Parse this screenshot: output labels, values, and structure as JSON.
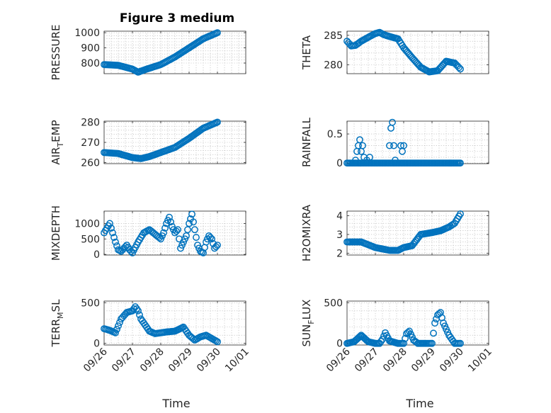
{
  "chart_data": {
    "type": "scatter",
    "title": "Figure 3 medium",
    "marker_color": "#0072BD",
    "x_axis": {
      "xlabel": "Time",
      "tick_labels": [
        "09/26",
        "09/27",
        "09/28",
        "09/29",
        "09/30",
        "10/01"
      ],
      "xlim": [
        0,
        5
      ]
    },
    "panels": [
      {
        "name": "pressure",
        "ylabel": "PRESSURE",
        "ylabel_sub": "",
        "ylabel_post": "",
        "ylim": [
          730,
          1010
        ],
        "yticks": [
          800,
          900,
          1000
        ],
        "ytick_labels": [
          "800",
          "900",
          "1000"
        ],
        "series": [
          {
            "x": [
              0,
              0.5,
              1,
              1.2,
              1.5,
              2,
              2.5,
              3,
              3.5,
              4
            ],
            "y": [
              790,
              785,
              760,
              740,
              760,
              790,
              840,
              900,
              960,
              1000
            ]
          }
        ]
      },
      {
        "name": "theta",
        "ylabel": "THETA",
        "ylabel_sub": "",
        "ylabel_post": "",
        "ylim": [
          278.5,
          285.7
        ],
        "yticks": [
          280,
          285
        ],
        "ytick_labels": [
          "280",
          "285"
        ],
        "series": [
          {
            "x": [
              0,
              0.15,
              0.3,
              0.5,
              0.8,
              1.0,
              1.15,
              1.3,
              1.5,
              1.8,
              2.0,
              2.3,
              2.6,
              2.9,
              3.2,
              3.5,
              3.8,
              4.0
            ],
            "y": [
              284.0,
              283.2,
              283.3,
              284.0,
              284.8,
              285.3,
              285.5,
              285.1,
              284.8,
              284.4,
              282.9,
              281.2,
              279.6,
              278.8,
              279.0,
              280.6,
              280.3,
              279.3
            ]
          }
        ]
      },
      {
        "name": "air-temp",
        "ylabel": "AIR",
        "ylabel_sub": "T",
        "ylabel_post": "EMP",
        "ylim": [
          259.5,
          280.5
        ],
        "yticks": [
          260,
          270,
          280
        ],
        "ytick_labels": [
          "260",
          "270",
          "280"
        ],
        "series": [
          {
            "x": [
              0,
              0.5,
              1,
              1.3,
              1.6,
              2,
              2.5,
              3,
              3.5,
              4
            ],
            "y": [
              265,
              264.5,
              262.5,
              262,
              263,
              265,
              267.5,
              272,
              277,
              280
            ]
          }
        ]
      },
      {
        "name": "rainfall",
        "ylabel": "RAINFALL",
        "ylabel_sub": "",
        "ylabel_post": "",
        "ylim": [
          -0.01,
          0.72
        ],
        "yticks": [
          0,
          0.5
        ],
        "ytick_labels": [
          "0",
          "0.5"
        ],
        "series": [
          {
            "x": [
              0,
              4
            ],
            "y": [
              0,
              0
            ]
          },
          {
            "x": [
              0.3,
              0.35,
              0.4,
              0.45,
              0.5,
              0.55,
              0.6,
              0.7,
              0.8
            ],
            "y": [
              0.05,
              0.2,
              0.3,
              0.4,
              0.2,
              0.3,
              0.1,
              0.05,
              0.1
            ]
          },
          {
            "x": [
              1.5,
              1.55,
              1.6,
              1.65,
              1.7,
              1.9,
              1.95,
              2.0
            ],
            "y": [
              0.3,
              0.6,
              0.7,
              0.3,
              0.05,
              0.3,
              0.2,
              0.3
            ]
          }
        ]
      },
      {
        "name": "mixdepth",
        "ylabel": "MIXDEPTH",
        "ylabel_sub": "",
        "ylabel_post": "",
        "ylim": [
          -20,
          1400
        ],
        "yticks": [
          0,
          500,
          1000
        ],
        "ytick_labels": [
          "0",
          "500",
          "1000"
        ],
        "series": [
          {
            "x": [
              0,
              0.1,
              0.2,
              0.3,
              0.4,
              0.5,
              0.6,
              0.7,
              0.8,
              0.9,
              1.0,
              1.2,
              1.4,
              1.6,
              1.8,
              2.0,
              2.1,
              2.2,
              2.3,
              2.4,
              2.5,
              2.6,
              2.7,
              2.8,
              2.9,
              3.0,
              3.1,
              3.2,
              3.3,
              3.4,
              3.5,
              3.6,
              3.7,
              3.8,
              3.9,
              4.0
            ],
            "y": [
              700,
              850,
              1000,
              700,
              400,
              150,
              100,
              200,
              300,
              150,
              50,
              400,
              700,
              800,
              650,
              500,
              700,
              1000,
              1200,
              900,
              700,
              800,
              200,
              400,
              600,
              1000,
              1300,
              800,
              300,
              100,
              50,
              400,
              600,
              500,
              200,
              300
            ]
          }
        ]
      },
      {
        "name": "h2omixra",
        "ylabel": "H2OMIXRA",
        "ylabel_sub": "",
        "ylabel_post": "",
        "ylim": [
          1.9,
          4.25
        ],
        "yticks": [
          2,
          3,
          4
        ],
        "ytick_labels": [
          "2",
          "3",
          "4"
        ],
        "series": [
          {
            "x": [
              0,
              0.5,
              1,
              1.5,
              1.8,
              2,
              2.3,
              2.6,
              3,
              3.3,
              3.6,
              3.8,
              4
            ],
            "y": [
              2.6,
              2.6,
              2.3,
              2.15,
              2.15,
              2.3,
              2.4,
              3.0,
              3.1,
              3.2,
              3.4,
              3.6,
              4.1
            ]
          }
        ]
      },
      {
        "name": "terr-msl",
        "ylabel": "TERR",
        "ylabel_sub": "M",
        "ylabel_post": "SL",
        "ylim": [
          -20,
          520
        ],
        "yticks": [
          0,
          500
        ],
        "ytick_labels": [
          "0",
          "500"
        ],
        "series": [
          {
            "x": [
              0,
              0.2,
              0.4,
              0.6,
              0.8,
              1.0,
              1.1,
              1.2,
              1.3,
              1.4,
              1.5,
              1.6,
              1.8,
              2.0,
              2.2,
              2.5,
              2.8,
              3.0,
              3.2,
              3.4,
              3.6,
              3.8,
              4.0
            ],
            "y": [
              180,
              160,
              130,
              300,
              380,
              400,
              450,
              400,
              300,
              250,
              200,
              150,
              120,
              130,
              140,
              150,
              200,
              100,
              40,
              80,
              100,
              60,
              20
            ]
          }
        ]
      },
      {
        "name": "sun-flux",
        "ylabel": "SUN",
        "ylabel_sub": "F",
        "ylabel_post": "LUX",
        "ylim": [
          -20,
          520
        ],
        "yticks": [
          0,
          500
        ],
        "ytick_labels": [
          "0",
          "500"
        ],
        "series": [
          {
            "x": [
              0,
              0.25,
              0.5,
              0.75,
              1.0,
              1.15,
              1.25,
              1.35,
              1.5,
              1.8,
              2.0,
              2.1,
              2.2,
              2.35,
              2.5,
              2.8,
              3.0,
              3.1,
              3.2,
              3.3,
              3.4,
              3.6,
              3.8,
              4.0
            ],
            "y": [
              0,
              20,
              100,
              20,
              0,
              0,
              50,
              130,
              30,
              0,
              0,
              120,
              150,
              40,
              0,
              0,
              0,
              250,
              350,
              380,
              250,
              100,
              0,
              0
            ]
          }
        ]
      }
    ]
  }
}
